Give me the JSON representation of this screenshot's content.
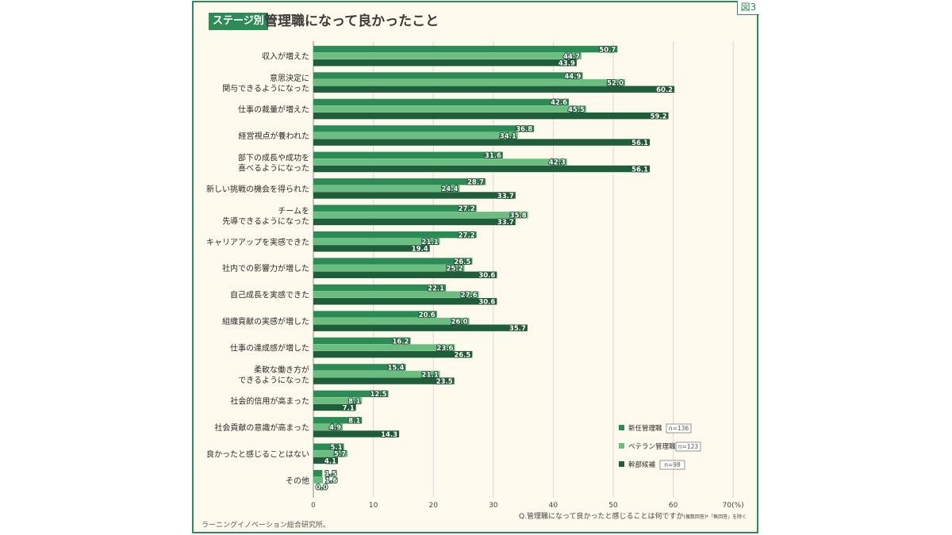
{
  "figure_label": "図3",
  "stage_tag": "ステージ別",
  "title": "管理職になって良かったこと",
  "question": {
    "main": "Q.管理職になって良かったと感じることは何ですか",
    "suffix": "(複数回答)*「無回答」を除く"
  },
  "source": "ラーニングイノベーション総合研究所。",
  "colors": {
    "frame": "#2e8b57",
    "background": "#fdf9ec",
    "new_manager": "#2a8b55",
    "veteran_manager": "#6cbe80",
    "executive_candidate": "#1f5e3b",
    "grid": "#d8d8d8"
  },
  "chart_data": {
    "type": "bar",
    "orientation": "horizontal",
    "title": "管理職になって良かったこと",
    "xlabel": "(%)",
    "xlim": [
      0,
      70
    ],
    "xticks": [
      0,
      10,
      20,
      30,
      40,
      50,
      60,
      70
    ],
    "xtick_labels": [
      "0",
      "10",
      "20",
      "30",
      "40",
      "50",
      "60",
      "70(%)"
    ],
    "grid": true,
    "legend_position": "bottom-right",
    "categories": [
      [
        "収入が増えた"
      ],
      [
        "意思決定に",
        "関与できるようになった"
      ],
      [
        "仕事の裁量が増えた"
      ],
      [
        "経営視点が養われた"
      ],
      [
        "部下の成長や成功を",
        "喜べるようになった"
      ],
      [
        "新しい挑戦の機会を得られた"
      ],
      [
        "チームを",
        "先導できるようになった"
      ],
      [
        "キャリアアップを実感できた"
      ],
      [
        "社内での影響力が増した"
      ],
      [
        "自己成長を実感できた"
      ],
      [
        "組織貢献の実感が増した"
      ],
      [
        "仕事の達成感が増した"
      ],
      [
        "柔軟な働き方が",
        "できるようになった"
      ],
      [
        "社会的信用が高まった"
      ],
      [
        "社会貢献の意識が高まった"
      ],
      [
        "良かったと感じることはない"
      ],
      [
        "その他"
      ]
    ],
    "series": [
      {
        "name": "新任管理職",
        "n_label": "n=136",
        "color": "#2a8b55",
        "values": [
          50.7,
          44.9,
          42.6,
          36.8,
          31.6,
          28.7,
          27.2,
          27.2,
          26.5,
          22.1,
          20.6,
          16.2,
          15.4,
          12.5,
          8.1,
          5.1,
          1.5
        ]
      },
      {
        "name": "ベテラン管理職",
        "n_label": "n=123",
        "color": "#6cbe80",
        "values": [
          44.7,
          52.0,
          45.5,
          34.1,
          42.3,
          24.4,
          35.8,
          21.1,
          25.2,
          27.6,
          26.0,
          23.6,
          21.1,
          8.1,
          4.9,
          5.7,
          1.6
        ]
      },
      {
        "name": "幹部候補",
        "n_label": "n=98",
        "color": "#1f5e3b",
        "values": [
          43.9,
          60.2,
          59.2,
          56.1,
          56.1,
          33.7,
          33.7,
          19.4,
          30.6,
          30.6,
          35.7,
          26.5,
          23.5,
          7.1,
          14.3,
          4.1,
          0.0
        ]
      }
    ]
  }
}
